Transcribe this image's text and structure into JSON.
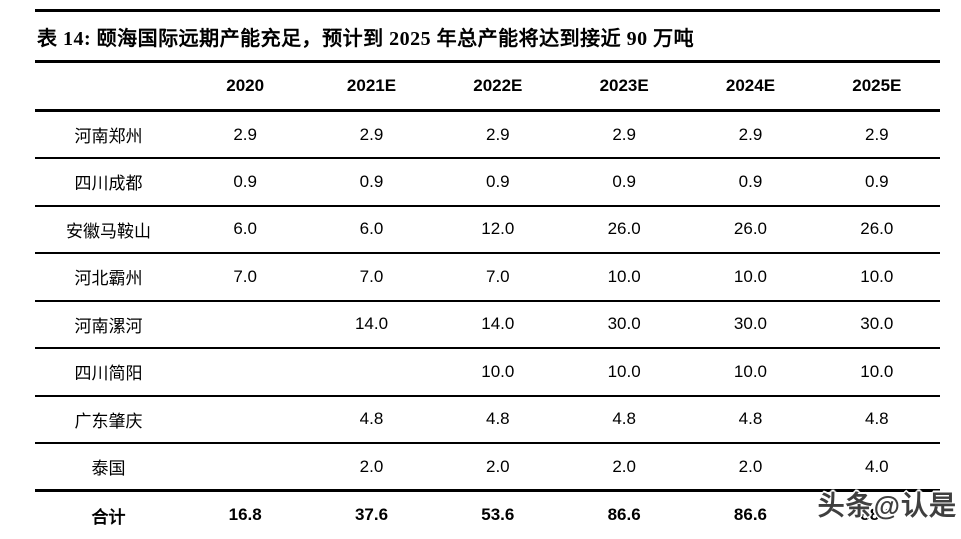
{
  "chart_data": {
    "type": "table",
    "title": "表 14: 颐海国际远期产能充足，预计到 2025 年总产能将达到接近 90 万吨",
    "columns": [
      "",
      "2020",
      "2021E",
      "2022E",
      "2023E",
      "2024E",
      "2025E"
    ],
    "rows": [
      {
        "label": "河南郑州",
        "values": [
          "2.9",
          "2.9",
          "2.9",
          "2.9",
          "2.9",
          "2.9"
        ]
      },
      {
        "label": "四川成都",
        "values": [
          "0.9",
          "0.9",
          "0.9",
          "0.9",
          "0.9",
          "0.9"
        ]
      },
      {
        "label": "安徽马鞍山",
        "values": [
          "6.0",
          "6.0",
          "12.0",
          "26.0",
          "26.0",
          "26.0"
        ]
      },
      {
        "label": "河北霸州",
        "values": [
          "7.0",
          "7.0",
          "7.0",
          "10.0",
          "10.0",
          "10.0"
        ]
      },
      {
        "label": "河南漯河",
        "values": [
          "",
          "14.0",
          "14.0",
          "30.0",
          "30.0",
          "30.0"
        ]
      },
      {
        "label": "四川简阳",
        "values": [
          "",
          "",
          "10.0",
          "10.0",
          "10.0",
          "10.0"
        ]
      },
      {
        "label": "广东肇庆",
        "values": [
          "",
          "4.8",
          "4.8",
          "4.8",
          "4.8",
          "4.8"
        ]
      },
      {
        "label": "泰国",
        "values": [
          "",
          "2.0",
          "2.0",
          "2.0",
          "2.0",
          "4.0"
        ]
      }
    ],
    "total_row": {
      "label": "合计",
      "values": [
        "16.8",
        "37.6",
        "53.6",
        "86.6",
        "86.6",
        "88.6"
      ]
    },
    "layout": {
      "grid": "horizontal-rules-only",
      "value_alignment": "center",
      "total_row_bold": true,
      "bottom_edge_clipped": true
    }
  },
  "watermark": {
    "text": "头条@认是"
  },
  "colors": {
    "text": "#000000",
    "rule": "#000000",
    "background": "#ffffff",
    "watermark": "#3f3f3f"
  }
}
